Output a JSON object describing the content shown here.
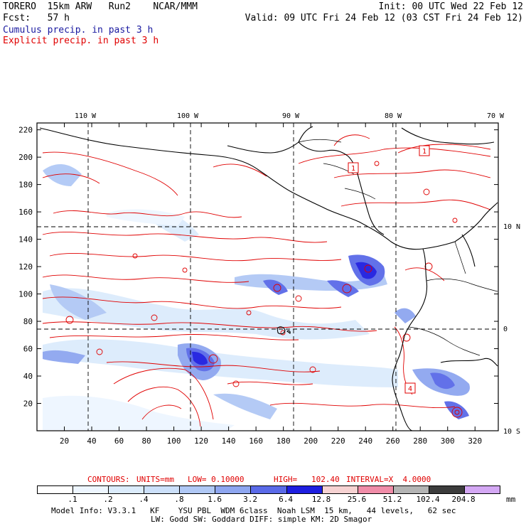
{
  "header": {
    "line1_left": "TORERO  15km ARW   Run2    NCAR/MMM",
    "line1_right": "Init: 00 UTC Wed 22 Feb 12",
    "line2_left": "Fcst:   57 h",
    "line2_right": "Valid: 09 UTC Fri 24 Feb 12 (03 CST Fri 24 Feb 12)",
    "legend_cumulus": "Cumulus precip. in past 3 h",
    "legend_explicit": "Explicit precip. in past 3 h"
  },
  "map": {
    "top_labels": [
      "110 W",
      "100 W",
      "90 W",
      "80 W",
      "70 W"
    ],
    "right_labels": [
      "10 N",
      "0",
      "10 S"
    ],
    "y_ticks": [
      "220",
      "200",
      "180",
      "160",
      "140",
      "120",
      "100",
      "80",
      "60",
      "40",
      "20"
    ],
    "x_ticks": [
      "20",
      "40",
      "60",
      "80",
      "100",
      "120",
      "140",
      "160",
      "180",
      "200",
      "220",
      "240",
      "260",
      "280",
      "300",
      "320"
    ],
    "box_labels": [
      "1",
      "1",
      "4"
    ],
    "colors": {
      "coast": "#000000",
      "explicit_contour": "#e00000",
      "frame": "#000000"
    }
  },
  "contour_info": {
    "contours": "CONTOURS:",
    "units": "UNITS=mm",
    "low": "LOW= 0.10000",
    "high": "HIGH=   102.40",
    "interval": "INTERVAL=X  4.0000"
  },
  "colorbar": {
    "labels": [
      ".1",
      ".2",
      ".4",
      ".8",
      "1.6",
      "3.2",
      "6.4",
      "12.8",
      "25.6",
      "51.2",
      "102.4",
      "204.8"
    ],
    "unit": "mm",
    "colors": [
      "#ffffff",
      "#eef6ff",
      "#dcecfc",
      "#cce0fa",
      "#b0c8f5",
      "#8ea6f0",
      "#5a6ae8",
      "#1e1ee0",
      "#f6d2d2",
      "#f08ca8",
      "#b4b4b4",
      "#3c3c3c",
      "#d4a8f4"
    ]
  },
  "footer": {
    "line1": "Model Info: V3.3.1   KF    YSU PBL  WDM 6class  Noah LSM  15 km,   44 levels,   62 sec",
    "line2": "LW: Godd SW: Goddard DIFF: simple KM: 2D Smagor"
  }
}
